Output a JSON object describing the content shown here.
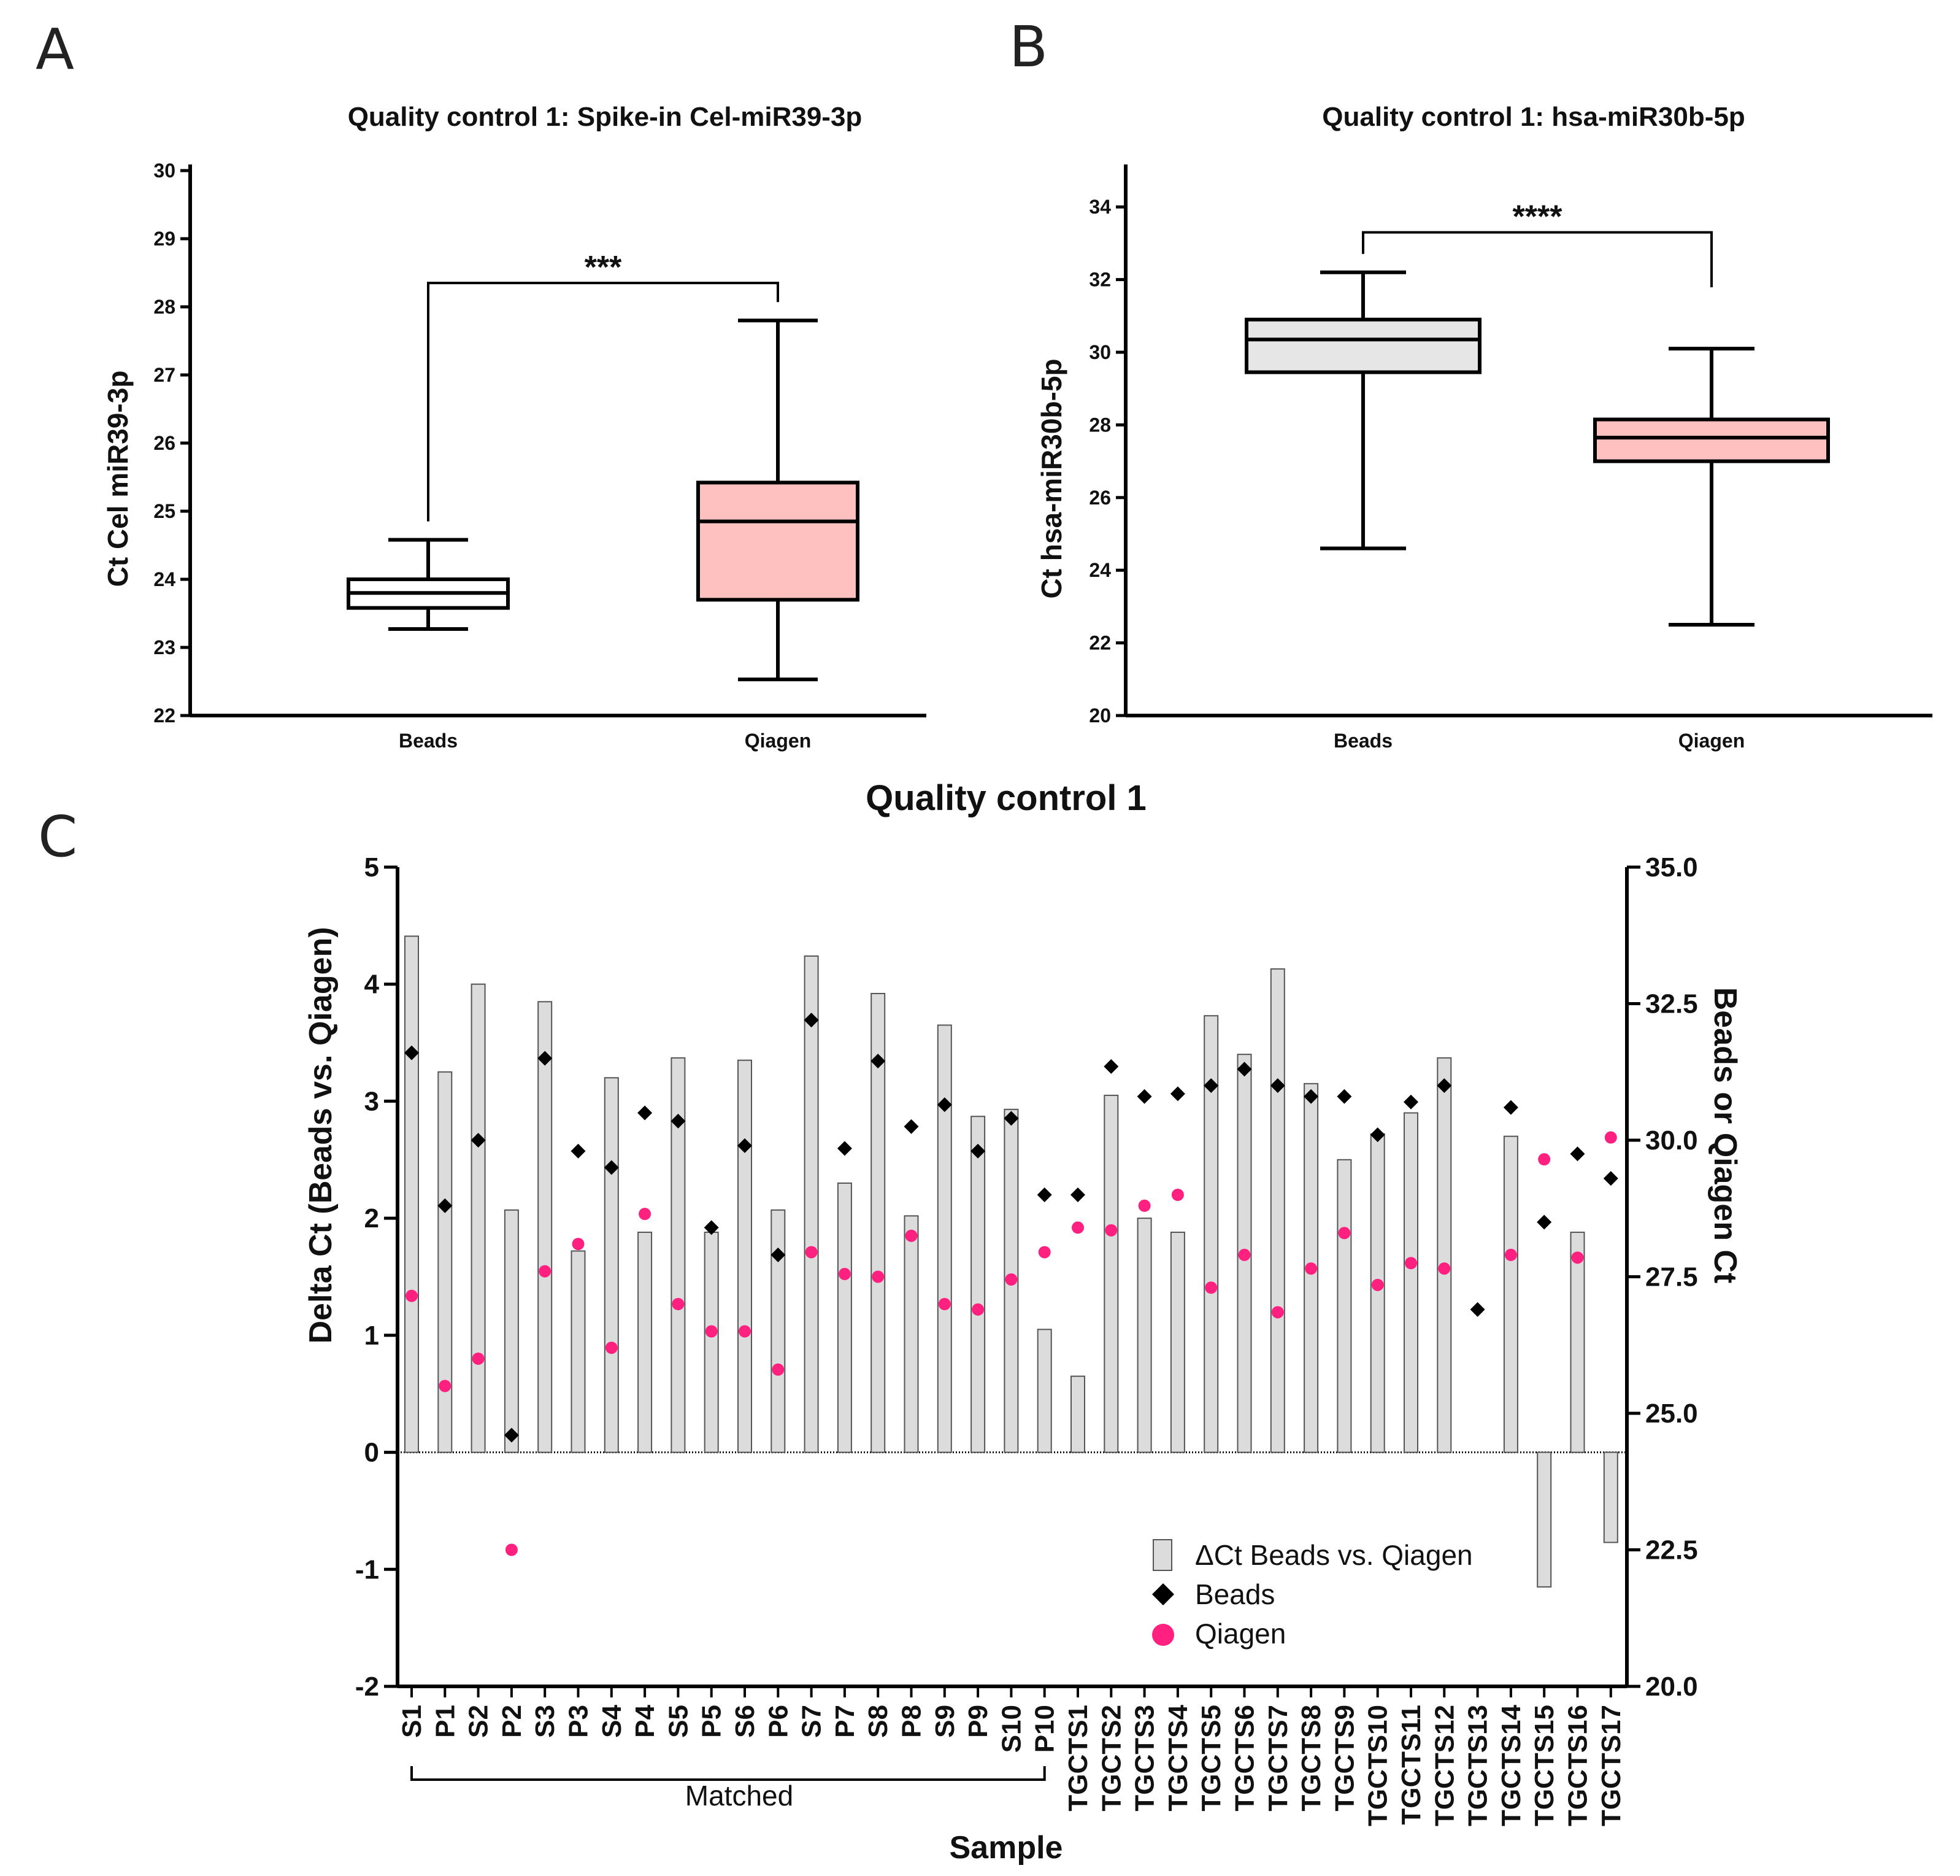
{
  "panels": {
    "a": "A",
    "b": "B",
    "c": "C"
  },
  "chart_data": [
    {
      "type": "box",
      "panel": "A",
      "title": "Quality control 1: Spike-in Cel-miR39-3p",
      "ylabel": "Ct Cel miR39-3p",
      "xlabel": "",
      "ylim": [
        22,
        30
      ],
      "yticks": [
        22,
        23,
        24,
        25,
        26,
        27,
        28,
        29,
        30
      ],
      "categories": [
        "Beads",
        "Qiagen"
      ],
      "boxes": [
        {
          "name": "Beads",
          "min": 23.27,
          "q1": 23.58,
          "median": 23.8,
          "q3": 24.0,
          "max": 24.58,
          "color": "#ffffff"
        },
        {
          "name": "Qiagen",
          "min": 22.53,
          "q1": 23.7,
          "median": 24.85,
          "q3": 25.42,
          "max": 27.8,
          "color": "#ffc0c0"
        }
      ],
      "significance": {
        "label": "***",
        "level": 28.35,
        "from": 0,
        "to": 1
      }
    },
    {
      "type": "box",
      "panel": "B",
      "title": "Quality control 1: hsa-miR30b-5p",
      "ylabel": "Ct hsa-miR30b-5p",
      "xlabel": "",
      "ylim": [
        20,
        35
      ],
      "yticks": [
        20,
        22,
        24,
        26,
        28,
        30,
        32,
        34
      ],
      "categories": [
        "Beads",
        "Qiagen"
      ],
      "boxes": [
        {
          "name": "Beads",
          "min": 24.6,
          "q1": 29.45,
          "median": 30.35,
          "q3": 30.9,
          "max": 32.2,
          "color": "#e6e6e6"
        },
        {
          "name": "Qiagen",
          "min": 22.5,
          "q1": 27.0,
          "median": 27.65,
          "q3": 28.15,
          "max": 30.1,
          "color": "#ffc0c0"
        }
      ],
      "significance": {
        "label": "****",
        "level": 33.3,
        "from": 0,
        "to": 1
      }
    },
    {
      "type": "bar+scatter",
      "panel": "C",
      "title": "Quality control 1",
      "xlabel": "Sample",
      "ylabel": "Delta Ct (Beads vs. Qiagen)",
      "ylabel_right": "Beads or Qiagen Ct",
      "ylim": [
        -2,
        5
      ],
      "yticks": [
        -2,
        -1,
        0,
        1,
        2,
        3,
        4,
        5
      ],
      "ylim_right": [
        20,
        35
      ],
      "yticks_right": [
        "20.0",
        "22.5",
        "25.0",
        "27.5",
        "30.0",
        "32.5",
        "35.0"
      ],
      "group_label": "Matched",
      "categories": [
        "S1",
        "P1",
        "S2",
        "P2",
        "S3",
        "P3",
        "S4",
        "P4",
        "S5",
        "P5",
        "S6",
        "P6",
        "S7",
        "P7",
        "S8",
        "P8",
        "S9",
        "P9",
        "S10",
        "P10",
        "TGCTS1",
        "TGCTS2",
        "TGCTS3",
        "TGCTS4",
        "TGCTS5",
        "TGCTS6",
        "TGCTS7",
        "TGCTS8",
        "TGCTS9",
        "TGCTS10",
        "TGCTS11",
        "TGCTS12",
        "TGCTS13",
        "TGCTS14",
        "TGCTS15",
        "TGCTS16",
        "TGCTS17"
      ],
      "series": [
        {
          "name": "ΔCt Beads vs. Qiagen",
          "axis": "left",
          "style": "bar",
          "color": "#dcdcdc",
          "values": [
            4.41,
            3.25,
            4.0,
            2.07,
            3.85,
            1.72,
            3.2,
            1.88,
            3.37,
            1.88,
            3.35,
            2.07,
            4.24,
            2.3,
            3.92,
            2.02,
            3.65,
            2.87,
            2.93,
            1.05,
            0.65,
            3.05,
            2.0,
            1.88,
            3.73,
            3.4,
            4.13,
            3.15,
            2.5,
            2.72,
            2.9,
            3.37,
            null,
            2.7,
            -1.15,
            1.88,
            -0.77
          ]
        },
        {
          "name": "Beads",
          "axis": "right",
          "style": "diamond",
          "color": "#000000",
          "values": [
            31.6,
            28.8,
            30.0,
            24.6,
            31.5,
            29.8,
            29.5,
            30.5,
            30.35,
            28.4,
            29.9,
            27.9,
            32.2,
            29.85,
            31.45,
            30.25,
            30.65,
            29.8,
            30.4,
            29.0,
            29.0,
            31.35,
            30.8,
            30.85,
            31.0,
            31.3,
            31.0,
            30.8,
            30.8,
            30.1,
            30.7,
            31.0,
            26.9,
            30.6,
            28.5,
            29.75,
            29.3
          ]
        },
        {
          "name": "Qiagen",
          "axis": "right",
          "style": "circle",
          "color": "#ff2080",
          "values": [
            27.15,
            25.5,
            26.0,
            22.5,
            27.6,
            28.1,
            26.2,
            28.65,
            27.0,
            26.5,
            26.5,
            25.8,
            27.95,
            27.55,
            27.5,
            28.25,
            27.0,
            26.9,
            27.45,
            27.95,
            28.4,
            28.35,
            28.8,
            29.0,
            27.3,
            27.9,
            26.85,
            27.65,
            28.3,
            27.35,
            27.75,
            27.65,
            null,
            27.9,
            29.65,
            27.85,
            30.05
          ]
        }
      ],
      "legend": [
        "ΔCt Beads vs. Qiagen",
        "Beads",
        "Qiagen"
      ]
    }
  ]
}
